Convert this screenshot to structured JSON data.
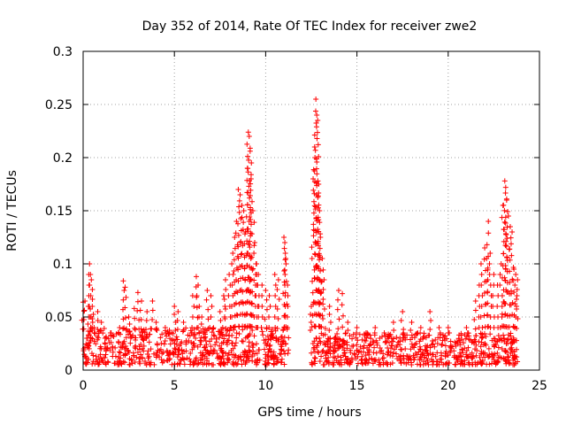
{
  "chart_data": {
    "type": "scatter",
    "title": "Day 352 of 2014, Rate Of TEC Index for receiver zwe2",
    "xlabel": "GPS time / hours",
    "ylabel": "ROTI / TECUs",
    "xlim": [
      0,
      25
    ],
    "ylim": [
      0,
      0.3
    ],
    "xticks": [
      0,
      5,
      10,
      15,
      20,
      25
    ],
    "xtick_labels": [
      "0",
      "5",
      "10",
      "15",
      "20",
      "25"
    ],
    "yticks": [
      0,
      0.05,
      0.1,
      0.15,
      0.2,
      0.25,
      0.3
    ],
    "ytick_labels": [
      "0",
      "0.05",
      "0.1",
      "0.15",
      "0.2",
      "0.25",
      "0.3"
    ],
    "grid": true,
    "marker": "+",
    "marker_color": "#ff0000",
    "series": [
      {
        "name": "ROTI",
        "points": [
          [
            0.0,
            0.064
          ],
          [
            0.1,
            0.065
          ],
          [
            0.2,
            0.03
          ],
          [
            0.3,
            0.05
          ],
          [
            0.35,
            0.1
          ],
          [
            0.4,
            0.09
          ],
          [
            0.45,
            0.085
          ],
          [
            0.5,
            0.06
          ],
          [
            0.6,
            0.04
          ],
          [
            0.8,
            0.055
          ],
          [
            1.0,
            0.045
          ],
          [
            1.2,
            0.03
          ],
          [
            1.5,
            0.035
          ],
          [
            2.0,
            0.04
          ],
          [
            2.2,
            0.084
          ],
          [
            2.3,
            0.078
          ],
          [
            2.5,
            0.05
          ],
          [
            2.8,
            0.058
          ],
          [
            3.0,
            0.073
          ],
          [
            3.2,
            0.065
          ],
          [
            3.5,
            0.055
          ],
          [
            3.8,
            0.065
          ],
          [
            4.0,
            0.045
          ],
          [
            4.5,
            0.04
          ],
          [
            5.0,
            0.06
          ],
          [
            5.2,
            0.055
          ],
          [
            5.5,
            0.045
          ],
          [
            6.0,
            0.07
          ],
          [
            6.2,
            0.088
          ],
          [
            6.3,
            0.08
          ],
          [
            6.5,
            0.05
          ],
          [
            6.8,
            0.075
          ],
          [
            7.0,
            0.07
          ],
          [
            7.5,
            0.055
          ],
          [
            7.7,
            0.07
          ],
          [
            7.8,
            0.085
          ],
          [
            8.0,
            0.09
          ],
          [
            8.2,
            0.11
          ],
          [
            8.3,
            0.125
          ],
          [
            8.4,
            0.14
          ],
          [
            8.5,
            0.17
          ],
          [
            8.6,
            0.165
          ],
          [
            8.7,
            0.155
          ],
          [
            8.8,
            0.15
          ],
          [
            8.9,
            0.13
          ],
          [
            9.0,
            0.19
          ],
          [
            9.05,
            0.224
          ],
          [
            9.1,
            0.22
          ],
          [
            9.15,
            0.206
          ],
          [
            9.2,
            0.18
          ],
          [
            9.3,
            0.15
          ],
          [
            9.4,
            0.12
          ],
          [
            9.5,
            0.1
          ],
          [
            9.6,
            0.09
          ],
          [
            9.8,
            0.08
          ],
          [
            10.0,
            0.075
          ],
          [
            10.2,
            0.07
          ],
          [
            10.5,
            0.09
          ],
          [
            10.7,
            0.085
          ],
          [
            11.0,
            0.125
          ],
          [
            11.05,
            0.12
          ],
          [
            11.1,
            0.105
          ],
          [
            11.2,
            0.08
          ],
          [
            12.5,
            0.06
          ],
          [
            12.6,
            0.18
          ],
          [
            12.7,
            0.2
          ],
          [
            12.75,
            0.255
          ],
          [
            12.8,
            0.24
          ],
          [
            12.85,
            0.235
          ],
          [
            12.9,
            0.175
          ],
          [
            12.95,
            0.15
          ],
          [
            13.0,
            0.125
          ],
          [
            13.1,
            0.105
          ],
          [
            13.2,
            0.085
          ],
          [
            13.5,
            0.06
          ],
          [
            14.0,
            0.075
          ],
          [
            14.2,
            0.072
          ],
          [
            14.5,
            0.045
          ],
          [
            15.0,
            0.04
          ],
          [
            15.5,
            0.035
          ],
          [
            16.0,
            0.04
          ],
          [
            16.5,
            0.035
          ],
          [
            17.0,
            0.045
          ],
          [
            17.5,
            0.055
          ],
          [
            18.0,
            0.045
          ],
          [
            18.5,
            0.04
          ],
          [
            19.0,
            0.055
          ],
          [
            19.5,
            0.04
          ],
          [
            20.0,
            0.04
          ],
          [
            21.0,
            0.04
          ],
          [
            21.5,
            0.065
          ],
          [
            21.7,
            0.08
          ],
          [
            21.8,
            0.1
          ],
          [
            22.0,
            0.115
          ],
          [
            22.1,
            0.105
          ],
          [
            22.2,
            0.14
          ],
          [
            22.3,
            0.11
          ],
          [
            22.5,
            0.09
          ],
          [
            22.7,
            0.08
          ],
          [
            22.9,
            0.1
          ],
          [
            23.0,
            0.155
          ],
          [
            23.1,
            0.178
          ],
          [
            23.15,
            0.172
          ],
          [
            23.2,
            0.16
          ],
          [
            23.3,
            0.145
          ],
          [
            23.4,
            0.135
          ],
          [
            23.5,
            0.13
          ],
          [
            23.6,
            0.095
          ],
          [
            23.7,
            0.09
          ],
          [
            23.8,
            0.085
          ]
        ]
      }
    ],
    "dense_bands": [
      {
        "x_range": [
          0.0,
          11.3
        ],
        "y_range": [
          0.005,
          0.04
        ]
      },
      {
        "x_range": [
          12.5,
          23.8
        ],
        "y_range": [
          0.005,
          0.035
        ]
      }
    ]
  }
}
